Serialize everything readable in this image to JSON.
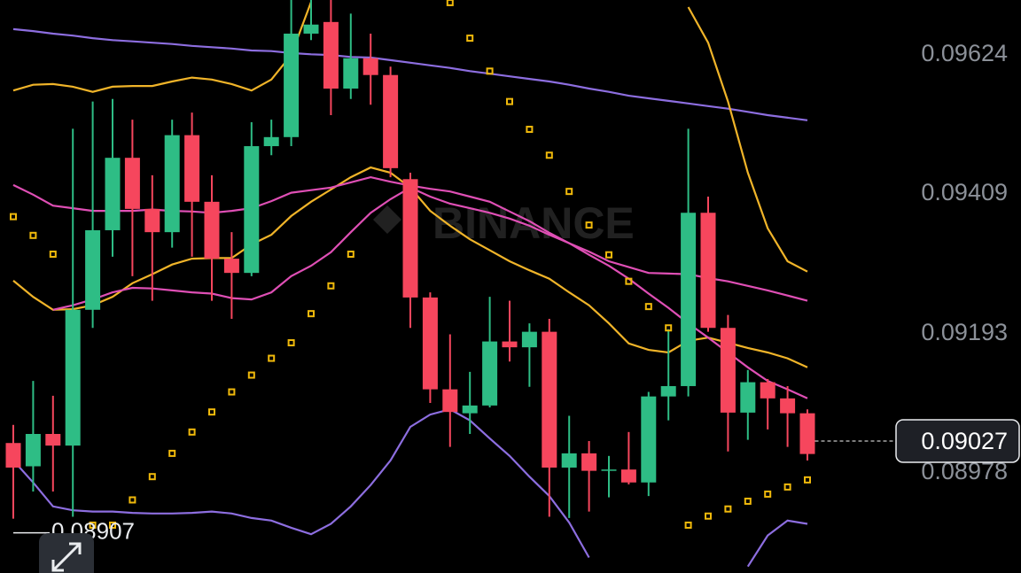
{
  "chart_data": {
    "type": "candlestick",
    "watermark": "BINANCE",
    "ylim": [
      0.08823,
      0.09709
    ],
    "yticks": [
      0.08978,
      0.09193,
      0.09409,
      0.09624
    ],
    "current_price": 0.09027,
    "low_price": 0.08907,
    "up_color": "#2ebd85",
    "down_color": "#f6465d",
    "open": [
      0.09024,
      0.08988,
      0.09038,
      0.0902,
      0.0923,
      0.09353,
      0.09465,
      0.09386,
      0.0935,
      0.095,
      0.09397,
      0.09309,
      0.09287,
      0.09483,
      0.09497,
      0.09657,
      0.09675,
      0.09572,
      0.09619,
      0.09593,
      0.09432,
      0.09249,
      0.09107,
      0.0907,
      0.09082,
      0.09181,
      0.09172,
      0.09196,
      0.08986,
      0.09008,
      0.08982,
      0.08983,
      0.08963,
      0.09096,
      0.09112,
      0.0938,
      0.09202,
      0.09071,
      0.09118,
      0.09093,
      0.0907
    ],
    "high": [
      0.09052,
      0.0912,
      0.09097,
      0.0951,
      0.09552,
      0.09556,
      0.09524,
      0.09438,
      0.09524,
      0.09535,
      0.09438,
      0.0935,
      0.0952,
      0.09524,
      0.09709,
      0.09709,
      0.09709,
      0.09688,
      0.09657,
      0.09606,
      0.09442,
      0.09257,
      0.09192,
      0.09134,
      0.0925,
      0.09244,
      0.09209,
      0.09216,
      0.09066,
      0.09027,
      0.09004,
      0.09041,
      0.09103,
      0.092,
      0.0951,
      0.09405,
      0.09222,
      0.09137,
      0.09123,
      0.09112,
      0.09076
    ],
    "low": [
      0.08907,
      0.08949,
      0.08949,
      0.0891,
      0.09202,
      0.09312,
      0.09282,
      0.09244,
      0.09326,
      0.09312,
      0.09244,
      0.09216,
      0.09282,
      0.09469,
      0.09483,
      0.09647,
      0.09531,
      0.09556,
      0.09547,
      0.09435,
      0.09202,
      0.09086,
      0.09018,
      0.09038,
      0.09079,
      0.0915,
      0.09111,
      0.0891,
      0.08908,
      0.08918,
      0.0894,
      0.0896,
      0.08942,
      0.09059,
      0.09096,
      0.09196,
      0.09011,
      0.09029,
      0.09045,
      0.09018,
      0.08997
    ],
    "close": [
      0.08986,
      0.09038,
      0.0902,
      0.0923,
      0.09353,
      0.09465,
      0.09386,
      0.0935,
      0.095,
      0.09397,
      0.09309,
      0.09287,
      0.09483,
      0.09497,
      0.09657,
      0.09671,
      0.09572,
      0.09619,
      0.09593,
      0.09449,
      0.09249,
      0.09107,
      0.09072,
      0.09082,
      0.09181,
      0.09172,
      0.09196,
      0.08986,
      0.09008,
      0.08981,
      0.08983,
      0.08963,
      0.09096,
      0.09112,
      0.0938,
      0.09202,
      0.09071,
      0.09118,
      0.09093,
      0.0907,
      0.09007
    ],
    "lines": [
      {
        "color": "#8d6ee0",
        "values": [
          0.09664,
          0.09661,
          0.09657,
          0.09654,
          0.0965,
          0.09647,
          0.09645,
          0.09643,
          0.09641,
          0.09638,
          0.09636,
          0.09634,
          0.09631,
          0.0963,
          0.09627,
          0.09625,
          0.09624,
          0.09621,
          0.0962,
          0.09616,
          0.09612,
          0.09608,
          0.09604,
          0.09599,
          0.09595,
          0.09591,
          0.09587,
          0.09583,
          0.09578,
          0.09572,
          0.09567,
          0.09561,
          0.09557,
          0.09553,
          0.09549,
          0.09545,
          0.09541,
          0.09536,
          0.09531,
          0.09527,
          0.09523
        ]
      },
      {
        "color": "#f0b429",
        "values": [
          0.09569,
          0.09578,
          0.09579,
          0.09575,
          0.09567,
          0.09575,
          0.09576,
          0.09576,
          0.09583,
          0.09589,
          0.09586,
          0.09579,
          0.09569,
          0.09586,
          0.09624,
          0.09706,
          null,
          null,
          null,
          null,
          null,
          null,
          null,
          null,
          null,
          null,
          null,
          null,
          null,
          null,
          null,
          null,
          null,
          null,
          0.09698,
          0.09643,
          0.09552,
          0.09442,
          0.09356,
          0.09305,
          0.09289
        ]
      },
      {
        "color": "#f0b429",
        "values": [
          0.09275,
          0.0925,
          0.0923,
          0.09231,
          0.09237,
          0.0925,
          0.09271,
          0.09285,
          0.093,
          0.09309,
          0.0931,
          0.0931,
          0.09331,
          0.09346,
          0.09375,
          0.09397,
          0.09416,
          0.09435,
          0.0945,
          0.09442,
          0.09419,
          0.09383,
          0.0936,
          0.09339,
          0.09322,
          0.09305,
          0.09291,
          0.09278,
          0.09257,
          0.09237,
          0.09209,
          0.09178,
          0.09168,
          0.09164,
          0.09182,
          0.09187,
          0.09179,
          0.09171,
          0.09164,
          0.09155,
          0.09141
        ]
      },
      {
        "color": "#df4fb5",
        "values": [
          0.09423,
          0.09408,
          0.09391,
          0.09387,
          0.09383,
          0.09383,
          0.09383,
          0.09385,
          0.09383,
          0.09382,
          0.0938,
          0.09383,
          0.09387,
          0.09398,
          0.09411,
          0.09415,
          0.09419,
          0.09427,
          0.09435,
          0.09428,
          0.09422,
          0.09417,
          0.09413,
          0.09405,
          0.09397,
          0.09382,
          0.09367,
          0.09349,
          0.09333,
          0.0932,
          0.09305,
          0.09296,
          0.09287,
          0.09286,
          0.09285,
          0.09279,
          0.09274,
          0.09267,
          0.0926,
          0.09252,
          0.09244
        ]
      },
      {
        "color": "#df4fb5",
        "values": [
          null,
          null,
          0.0923,
          0.09237,
          0.09246,
          0.09257,
          0.09264,
          0.09263,
          0.0926,
          0.09257,
          0.09255,
          0.09248,
          0.09246,
          0.09257,
          0.09282,
          0.09298,
          0.09319,
          0.0935,
          0.0938,
          0.09401,
          0.09419,
          0.09405,
          0.09394,
          0.09387,
          0.0938,
          0.09371,
          0.0936,
          0.09346,
          0.09333,
          0.09315,
          0.09298,
          0.09278,
          0.09255,
          0.09233,
          0.09209,
          0.09187,
          0.09164,
          0.09141,
          0.0912,
          0.09107,
          0.09093
        ]
      },
      {
        "color": "#8d6ee0",
        "values": [
          0.08997,
          0.08963,
          0.08926,
          0.0892,
          0.08918,
          0.08918,
          0.08916,
          0.08915,
          0.08915,
          0.08916,
          0.08918,
          0.08915,
          0.08908,
          0.08904,
          0.08893,
          0.08883,
          0.08899,
          0.08926,
          0.08959,
          0.08997,
          0.09049,
          0.09068,
          0.09076,
          0.09059,
          0.09031,
          0.09004,
          0.08972,
          0.08942,
          0.08901,
          0.08847,
          null,
          null,
          null,
          null,
          null,
          null,
          null,
          0.08833,
          0.08881,
          0.08904,
          0.08899
        ]
      }
    ],
    "sar": {
      "color": "#f0b90b",
      "values": [
        0.09374,
        0.09345,
        0.09316,
        null,
        0.08897,
        0.08897,
        0.08936,
        0.08972,
        0.09008,
        0.09041,
        0.09072,
        0.09103,
        0.09129,
        0.09155,
        0.09179,
        0.09224,
        0.09267,
        0.09316,
        null,
        null,
        null,
        null,
        0.09705,
        0.0965,
        0.09599,
        0.09552,
        0.09509,
        0.09469,
        0.09413,
        0.09361,
        0.09315,
        0.09274,
        0.09235,
        0.09202,
        0.08897,
        0.08911,
        0.08922,
        0.08934,
        0.08945,
        0.08956,
        0.08967
      ]
    }
  }
}
